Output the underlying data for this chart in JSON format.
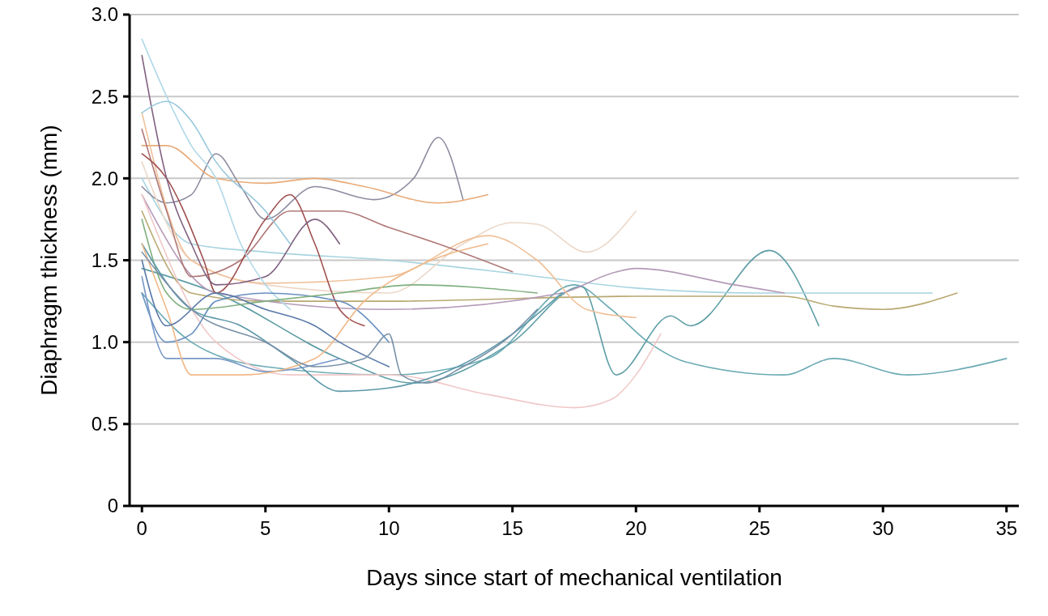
{
  "chart_data": {
    "type": "line",
    "xlabel": "Days since start of mechanical ventilation",
    "ylabel": "Diaphragm thickness (mm)",
    "xlim": [
      -0.5,
      35.5
    ],
    "xticks": [
      0,
      5,
      10,
      15,
      20,
      25,
      30,
      35
    ],
    "ylim": [
      0,
      3.0
    ],
    "yticks": [
      {
        "value": 0,
        "label": "0"
      },
      {
        "value": 0.5,
        "label": "0.5"
      },
      {
        "value": 1.0,
        "label": "1.0"
      },
      {
        "value": 1.5,
        "label": "1.5"
      },
      {
        "value": 2.0,
        "label": "2.0"
      },
      {
        "value": 2.5,
        "label": "2.5"
      },
      {
        "value": 3.0,
        "label": "3.0"
      }
    ],
    "grid": "y",
    "series": [
      {
        "color": "#6aaab4",
        "x": [
          0,
          2,
          5,
          10,
          14,
          17.5,
          19,
          20.5,
          22,
          26,
          28,
          31,
          35
        ],
        "values": [
          1.3,
          1.0,
          0.85,
          0.8,
          0.9,
          1.35,
          1.2,
          1.0,
          0.88,
          0.8,
          0.9,
          0.8,
          0.9
        ]
      },
      {
        "color": "#5e9ea6",
        "x": [
          0,
          3,
          8,
          11,
          15,
          17.8,
          19.2,
          21.4,
          22.2,
          25.4,
          27.4
        ],
        "values": [
          1.45,
          1.3,
          0.9,
          0.75,
          1.0,
          1.34,
          0.8,
          1.16,
          1.1,
          1.56,
          1.1
        ]
      },
      {
        "color": "#a8d4e0",
        "x": [
          0,
          2,
          5,
          10,
          15,
          20,
          25,
          32
        ],
        "values": [
          2.0,
          1.6,
          1.55,
          1.5,
          1.42,
          1.33,
          1.3,
          1.3
        ]
      },
      {
        "color": "#b8a870",
        "x": [
          0,
          2,
          5,
          10,
          20,
          26,
          28,
          30,
          33
        ],
        "values": [
          1.8,
          1.3,
          1.25,
          1.25,
          1.28,
          1.28,
          1.22,
          1.2,
          1.3
        ]
      },
      {
        "color": "#b49ab8",
        "x": [
          0,
          3,
          10,
          17,
          19,
          20,
          24,
          26
        ],
        "values": [
          1.9,
          1.3,
          1.2,
          1.3,
          1.42,
          1.45,
          1.35,
          1.3
        ]
      },
      {
        "color": "#8c8ca0",
        "x": [
          0,
          1,
          2,
          3,
          4,
          5,
          7,
          9.4,
          11,
          12,
          13
        ],
        "values": [
          1.95,
          1.85,
          1.9,
          2.15,
          1.95,
          1.75,
          1.95,
          1.87,
          2.0,
          2.25,
          1.87
        ]
      },
      {
        "color": "#e8aa78",
        "x": [
          0,
          1,
          3,
          5,
          7,
          9,
          12,
          14
        ],
        "values": [
          2.2,
          2.2,
          2.0,
          1.97,
          2.0,
          1.95,
          1.85,
          1.9
        ]
      },
      {
        "color": "#ecd8c8",
        "x": [
          0,
          2,
          5,
          10,
          13,
          15,
          16,
          18,
          20
        ],
        "values": [
          2.1,
          1.5,
          1.35,
          1.3,
          1.6,
          1.73,
          1.72,
          1.55,
          1.8
        ]
      },
      {
        "color": "#f0c098",
        "x": [
          0,
          2,
          5,
          10,
          14,
          16,
          18,
          20
        ],
        "values": [
          2.4,
          1.5,
          1.36,
          1.4,
          1.65,
          1.5,
          1.2,
          1.15
        ]
      },
      {
        "color": "#f0c8c8",
        "x": [
          0,
          3,
          6,
          10,
          14,
          17.5,
          19,
          20,
          21
        ],
        "values": [
          1.9,
          1.0,
          0.8,
          0.8,
          0.68,
          0.6,
          0.65,
          0.8,
          1.05
        ]
      },
      {
        "color": "#b07878",
        "x": [
          0,
          1,
          2,
          4,
          6,
          8,
          10,
          12,
          15
        ],
        "values": [
          2.3,
          1.8,
          1.4,
          1.5,
          1.8,
          1.8,
          1.7,
          1.6,
          1.43
        ]
      },
      {
        "color": "#a05050",
        "x": [
          0,
          1,
          2.5,
          3,
          5,
          6,
          7,
          8,
          9
        ],
        "values": [
          2.15,
          2.0,
          1.5,
          1.3,
          1.75,
          1.9,
          1.6,
          1.2,
          1.1
        ]
      },
      {
        "color": "#806080",
        "x": [
          0,
          1,
          2,
          3,
          5,
          7,
          8
        ],
        "values": [
          2.75,
          2.0,
          1.6,
          1.35,
          1.4,
          1.75,
          1.6
        ]
      },
      {
        "color": "#b0d8e8",
        "x": [
          0,
          1,
          2,
          3,
          4,
          5,
          6
        ],
        "values": [
          2.85,
          2.5,
          2.2,
          2.0,
          1.6,
          1.35,
          1.2
        ]
      },
      {
        "color": "#98c8dc",
        "x": [
          0,
          1,
          2,
          3,
          5,
          6
        ],
        "values": [
          2.4,
          2.47,
          2.35,
          2.1,
          1.8,
          1.6
        ]
      },
      {
        "color": "#6890c0",
        "x": [
          0,
          1,
          2,
          3,
          5,
          8,
          10
        ],
        "values": [
          1.3,
          1.0,
          1.05,
          1.25,
          1.3,
          1.25,
          1.0
        ]
      },
      {
        "color": "#7898c8",
        "x": [
          0,
          1,
          3,
          5,
          8
        ],
        "values": [
          1.4,
          0.9,
          0.9,
          0.82,
          0.9
        ]
      },
      {
        "color": "#80b080",
        "x": [
          0,
          1,
          2,
          5,
          8,
          11,
          16
        ],
        "values": [
          1.75,
          1.3,
          1.2,
          1.25,
          1.3,
          1.35,
          1.3
        ]
      },
      {
        "color": "#5c98a8",
        "x": [
          0,
          2,
          4,
          6,
          8,
          10,
          12,
          15,
          17
        ],
        "values": [
          1.6,
          1.2,
          1.1,
          0.9,
          0.7,
          0.72,
          0.8,
          1.05,
          1.3
        ]
      },
      {
        "color": "#f0b888",
        "x": [
          0,
          1,
          2,
          4,
          7,
          9,
          11,
          14
        ],
        "values": [
          1.6,
          1.2,
          0.8,
          0.8,
          0.9,
          1.25,
          1.45,
          1.6
        ]
      },
      {
        "color": "#5878a8",
        "x": [
          0,
          1,
          3,
          5,
          7,
          8,
          10
        ],
        "values": [
          1.5,
          1.1,
          1.3,
          1.2,
          1.1,
          1.0,
          0.85
        ]
      },
      {
        "color": "#7890a8",
        "x": [
          0,
          2,
          5,
          7,
          9,
          10,
          10.5,
          11.5,
          13,
          15,
          16
        ],
        "values": [
          1.55,
          1.2,
          1.0,
          0.85,
          0.9,
          1.05,
          0.8,
          0.75,
          0.85,
          1.05,
          1.2
        ]
      }
    ]
  }
}
